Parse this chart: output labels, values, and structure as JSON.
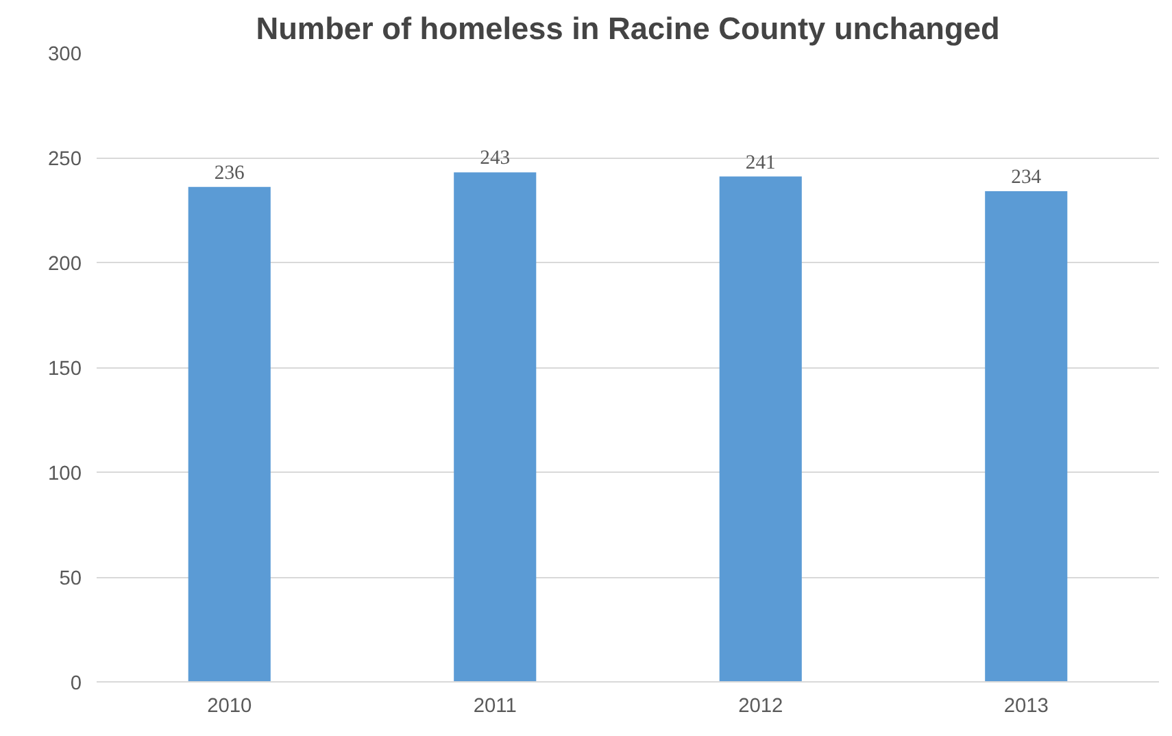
{
  "chart_data": {
    "type": "bar",
    "title": "Number of homeless in Racine County unchanged",
    "categories": [
      "2010",
      "2011",
      "2012",
      "2013"
    ],
    "values": [
      236,
      243,
      241,
      234
    ],
    "color": "#5b9bd5",
    "ylim": [
      0,
      300
    ],
    "yticks": [
      0,
      50,
      100,
      150,
      200,
      250,
      300
    ],
    "grid": "y",
    "data_labels": true
  }
}
